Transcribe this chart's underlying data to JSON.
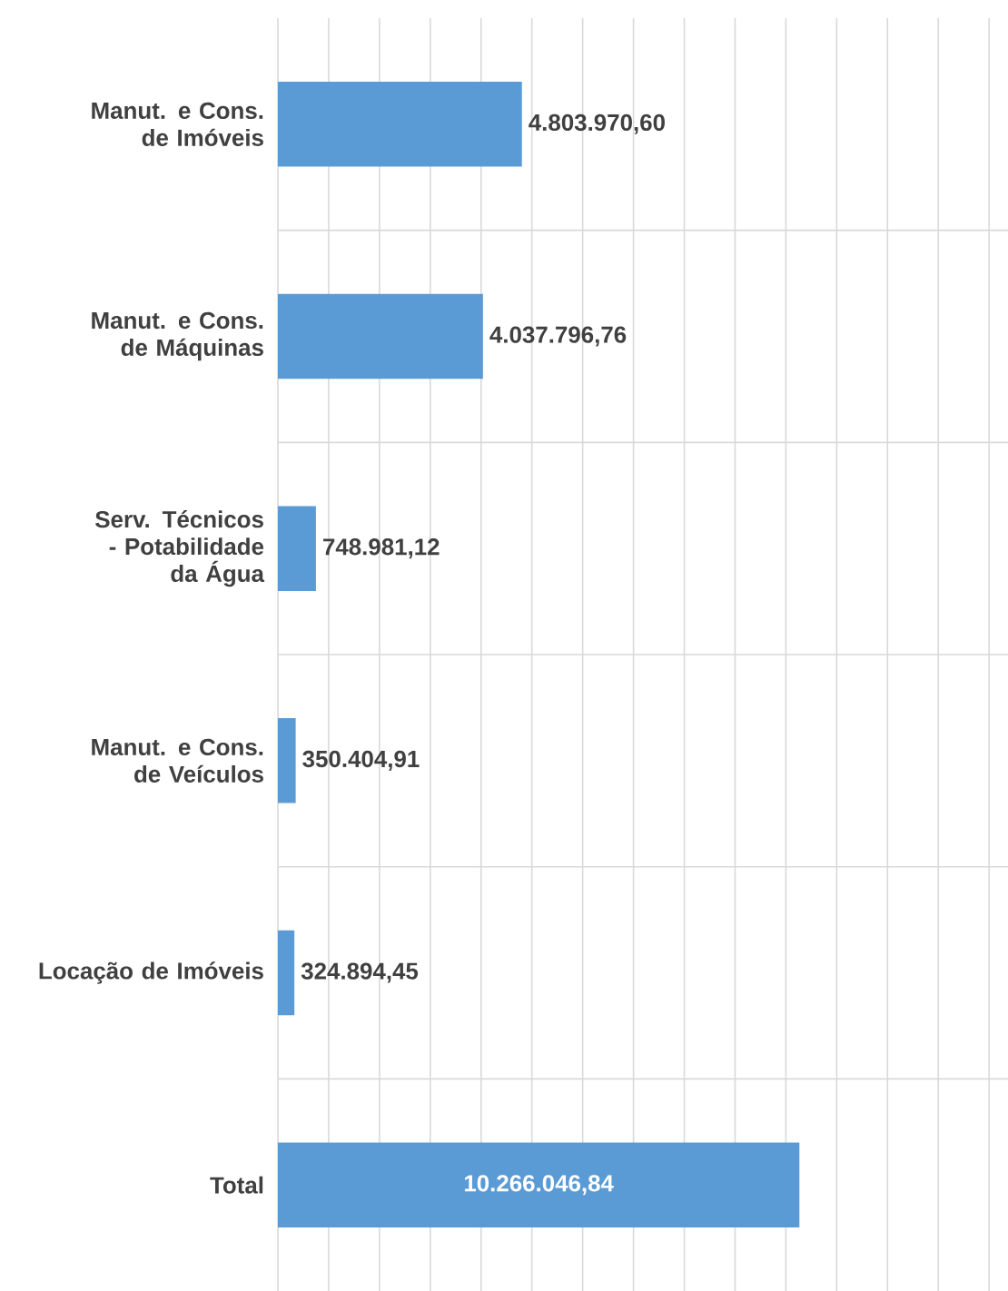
{
  "chart_data": {
    "type": "bar",
    "orientation": "horizontal",
    "categories": [
      "Manut. e Cons. de Imóveis",
      "Manut. e Cons. de Máquinas",
      "Serv. Técnicos - Potabilidade da Água",
      "Manut. e Cons. de Veículos",
      "Locação de Imóveis",
      "Total"
    ],
    "values": [
      4803970.6,
      4037796.76,
      748981.12,
      350404.91,
      324894.45,
      10266046.84
    ],
    "value_labels": [
      "4.803.970,60",
      "4.037.796,76",
      "748.981,12",
      "350.404,91",
      "324.894,45",
      "10.266.046,84"
    ],
    "color": "#5b9bd5",
    "grid": true,
    "tick_labels": "y"
  }
}
